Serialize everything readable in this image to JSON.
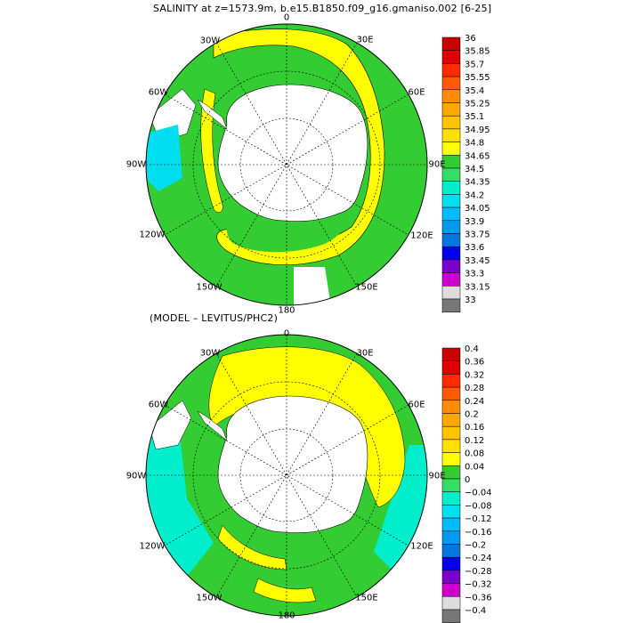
{
  "panel_top": {
    "title": "SALINITY at z=1573.9m, b.e15.B1850.f09_g16.gmaniso.002 [6-25]",
    "lon_labels": {
      "deg0": "0",
      "deg30e": "30E",
      "deg60e": "60E",
      "deg90e": "90E",
      "deg120e": "120E",
      "deg150e": "150E",
      "deg180": "180",
      "deg150w": "150W",
      "deg120w": "120W",
      "deg90w": "90W",
      "deg60w": "60W",
      "deg30w": "30W"
    },
    "colorbar": {
      "labels": [
        "36",
        "35.85",
        "35.7",
        "35.55",
        "35.4",
        "35.25",
        "35.1",
        "34.95",
        "34.8",
        "34.65",
        "34.5",
        "34.35",
        "34.2",
        "34.05",
        "33.9",
        "33.75",
        "33.6",
        "33.45",
        "33.3",
        "33.15",
        "33"
      ],
      "colors": [
        "#c80000",
        "#e00000",
        "#ff2a00",
        "#ff5a00",
        "#ff8c00",
        "#ffa600",
        "#ffc400",
        "#ffe000",
        "#ffff00",
        "#33cc33",
        "#33dd66",
        "#00eecc",
        "#00ddee",
        "#00bbff",
        "#0099ee",
        "#0077dd",
        "#0000ee",
        "#7a00cc",
        "#cc00cc",
        "#dddddd",
        "#777777"
      ]
    }
  },
  "panel_bottom": {
    "title": "(MODEL – LEVITUS/PHC2)",
    "lon_labels": {
      "deg0": "0",
      "deg30e": "30E",
      "deg60e": "60E",
      "deg90e": "90E",
      "deg120e": "120E",
      "deg150e": "150E",
      "deg180": "180",
      "deg150w": "150W",
      "deg120w": "120W",
      "deg90w": "90W",
      "deg60w": "60W",
      "deg30w": "30W"
    },
    "colorbar": {
      "labels": [
        "0.4",
        "0.36",
        "0.32",
        "0.28",
        "0.24",
        "0.2",
        "0.16",
        "0.12",
        "0.08",
        "0.04",
        "0",
        "−0.04",
        "−0.08",
        "−0.12",
        "−0.16",
        "−0.2",
        "−0.24",
        "−0.28",
        "−0.32",
        "−0.36",
        "−0.4"
      ],
      "colors": [
        "#c80000",
        "#e00000",
        "#ff2a00",
        "#ff5a00",
        "#ff8c00",
        "#ffa600",
        "#ffc400",
        "#ffe000",
        "#ffff00",
        "#33cc33",
        "#33dd66",
        "#00eecc",
        "#00ddee",
        "#00bbff",
        "#0099ee",
        "#0077dd",
        "#0000ee",
        "#7a00cc",
        "#cc00cc",
        "#dddddd",
        "#777777"
      ]
    }
  },
  "colors": {
    "land": "#ffffff",
    "ocean_green": "#33cc33",
    "ocean_yellow": "#ffff00",
    "ocean_cyan": "#00eecc",
    "ocean_lightcyan": "#00ddee"
  }
}
